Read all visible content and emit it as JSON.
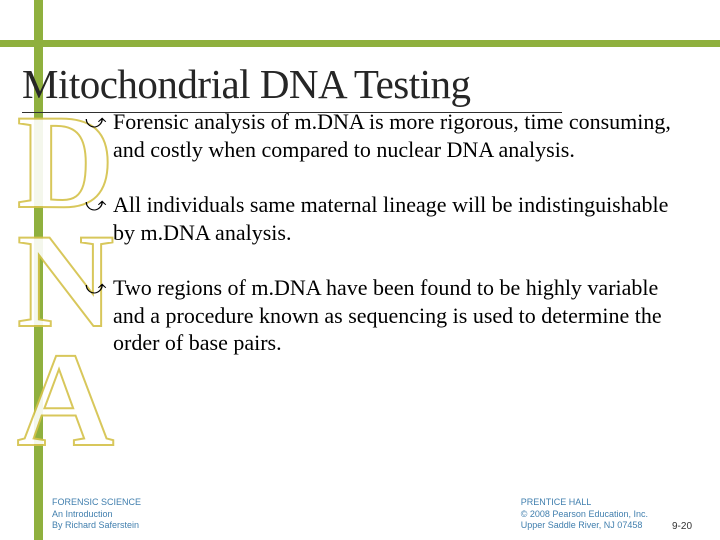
{
  "decor": {
    "vert_color": "#8fb03e",
    "horz_color": "#8fb03e",
    "watermark_text": "DNA",
    "watermark_stroke": "#d4c24a"
  },
  "title": "Mitochondrial DNA Testing",
  "bullets": [
    "Forensic analysis of m.DNA is more rigorous, time consuming, and costly when compared to nuclear DNA analysis.",
    "All individuals same maternal lineage will be indistinguishable by m.DNA analysis.",
    "Two regions of m.DNA have been found to be highly variable and a procedure known as sequencing is used to determine the order of base pairs."
  ],
  "footer": {
    "left_line1": "FORENSIC SCIENCE",
    "left_line2": "An Introduction",
    "left_line3": "By Richard Saferstein",
    "right_line1": "PRENTICE HALL",
    "right_line2": "© 2008 Pearson Education, Inc.",
    "right_line3": "Upper Saddle River, NJ 07458",
    "page": "9-20"
  }
}
